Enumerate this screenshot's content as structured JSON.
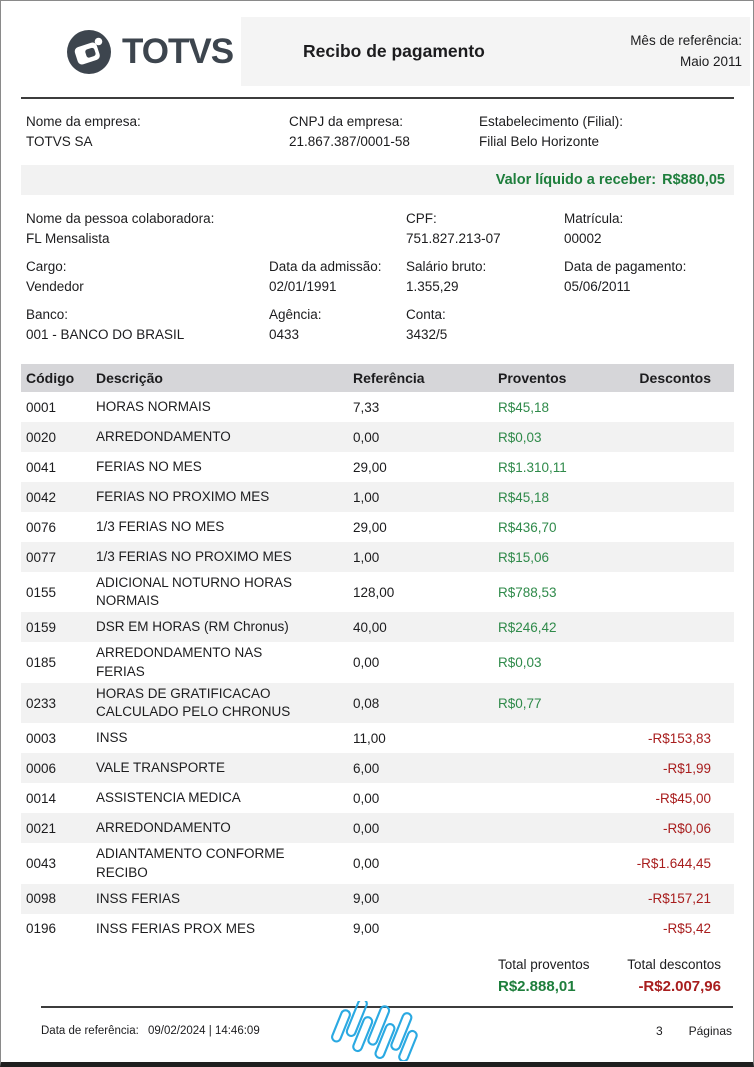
{
  "colors": {
    "brand_dark": "#3d454e",
    "accent_green": "#1e7e3c",
    "value_green": "#2f8a4a",
    "value_red": "#a81d1d",
    "watermark_blue": "#2aa9e2"
  },
  "header": {
    "logo_text": "TOTVS",
    "title": "Recibo de pagamento",
    "month_label": "Mês de referência:",
    "month_value": "Maio 2011"
  },
  "company": {
    "name_label": "Nome da empresa:",
    "name_value": "TOTVS SA",
    "cnpj_label": "CNPJ da empresa:",
    "cnpj_value": "21.867.387/0001-58",
    "branch_label": "Estabelecimento (Filial):",
    "branch_value": "Filial Belo Horizonte"
  },
  "net": {
    "label": "Valor líquido a receber:",
    "value": "R$880,05"
  },
  "employee": {
    "name_label": "Nome da pessoa colaboradora:",
    "name_value": "FL Mensalista",
    "cpf_label": "CPF:",
    "cpf_value": "751.827.213-07",
    "matricula_label": "Matrícula:",
    "matricula_value": "00002",
    "cargo_label": "Cargo:",
    "cargo_value": "Vendedor",
    "admissao_label": "Data da admissão:",
    "admissao_value": "02/01/1991",
    "salario_label": "Salário bruto:",
    "salario_value": "1.355,29",
    "pagamento_label": "Data de pagamento:",
    "pagamento_value": "05/06/2011",
    "banco_label": "Banco:",
    "banco_value": "001 - BANCO DO BRASIL",
    "agencia_label": "Agência:",
    "agencia_value": "0433",
    "conta_label": "Conta:",
    "conta_value": "3432/5"
  },
  "table": {
    "columns": [
      "Código",
      "Descrição",
      "Referência",
      "Proventos",
      "Descontos"
    ],
    "rows": [
      {
        "code": "0001",
        "description": "HORAS NORMAIS",
        "reference": "7,33",
        "provento": "R$45,18",
        "desconto": ""
      },
      {
        "code": "0020",
        "description": "ARREDONDAMENTO",
        "reference": "0,00",
        "provento": "R$0,03",
        "desconto": ""
      },
      {
        "code": "0041",
        "description": "FERIAS NO MES",
        "reference": "29,00",
        "provento": "R$1.310,11",
        "desconto": ""
      },
      {
        "code": "0042",
        "description": "FERIAS NO PROXIMO MES",
        "reference": "1,00",
        "provento": "R$45,18",
        "desconto": ""
      },
      {
        "code": "0076",
        "description": "1/3 FERIAS NO MES",
        "reference": "29,00",
        "provento": "R$436,70",
        "desconto": ""
      },
      {
        "code": "0077",
        "description": "1/3 FERIAS NO PROXIMO MES",
        "reference": "1,00",
        "provento": "R$15,06",
        "desconto": ""
      },
      {
        "code": "0155",
        "description": "ADICIONAL NOTURNO HORAS NORMAIS",
        "reference": "128,00",
        "provento": "R$788,53",
        "desconto": ""
      },
      {
        "code": "0159",
        "description": "DSR EM HORAS (RM Chronus)",
        "reference": "40,00",
        "provento": "R$246,42",
        "desconto": ""
      },
      {
        "code": "0185",
        "description": "ARREDONDAMENTO NAS FERIAS",
        "reference": "0,00",
        "provento": "R$0,03",
        "desconto": ""
      },
      {
        "code": "0233",
        "description": "HORAS DE GRATIFICACAO CALCULADO PELO CHRONUS",
        "reference": "0,08",
        "provento": "R$0,77",
        "desconto": ""
      },
      {
        "code": "0003",
        "description": "INSS",
        "reference": "11,00",
        "provento": "",
        "desconto": "-R$153,83"
      },
      {
        "code": "0006",
        "description": "VALE TRANSPORTE",
        "reference": "6,00",
        "provento": "",
        "desconto": "-R$1,99"
      },
      {
        "code": "0014",
        "description": "ASSISTENCIA MEDICA",
        "reference": "0,00",
        "provento": "",
        "desconto": "-R$45,00"
      },
      {
        "code": "0021",
        "description": "ARREDONDAMENTO",
        "reference": "0,00",
        "provento": "",
        "desconto": "-R$0,06"
      },
      {
        "code": "0043",
        "description": "ADIANTAMENTO CONFORME RECIBO",
        "reference": "0,00",
        "provento": "",
        "desconto": "-R$1.644,45"
      },
      {
        "code": "0098",
        "description": "INSS FERIAS",
        "reference": "9,00",
        "provento": "",
        "desconto": "-R$157,21"
      },
      {
        "code": "0196",
        "description": "INSS FERIAS PROX MES",
        "reference": "9,00",
        "provento": "",
        "desconto": "-R$5,42"
      }
    ]
  },
  "totals": {
    "proventos_label": "Total proventos",
    "proventos_value": "R$2.888,01",
    "descontos_label": "Total descontos",
    "descontos_value": "-R$2.007,96"
  },
  "footer": {
    "ref_label": "Data de referência:",
    "ref_value": "09/02/2024 | 14:46:09",
    "page_number": "3",
    "pages_label": "Páginas"
  }
}
